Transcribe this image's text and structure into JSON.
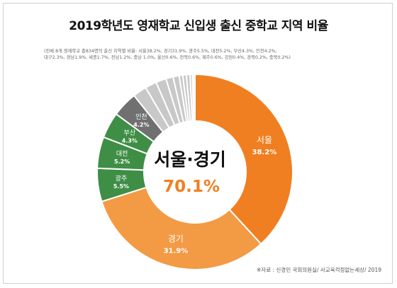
{
  "title": "2019학년도 영재학교 신입생 출신 중학교 지역 비율",
  "note": "(전체 8개 영재학교 총834명의 출신 지역별 비율: 서울38.2%, 경기31.9%, 광주5.5%, 대전5.2%, 부산4.3%, 인천4.2%,\n대구2.3%, 경남1.9%, 세종1.7%, 전남1.2%, 충남 1.0%, 울산0.6%, 전북0.6%, 제주0.6%, 강원0.4%, 경북0.2%, 충북0.2%)",
  "center": {
    "label": "서울·경기",
    "value": "70.1%"
  },
  "source": "※자료 : 신경민 국회의원실/ 사교육걱정없는세상/ 2019",
  "colors": {
    "seoul": "#F07F21",
    "gyeonggi": "#F39A45",
    "green": "#3F8E46",
    "gray": "#707070",
    "lightgray": "#C8C8C8",
    "center_value": "#F07F21"
  },
  "chart_data": {
    "type": "pie",
    "style": "donut",
    "title": "2019학년도 영재학교 신입생 출신 중학교 지역 비율",
    "categories": [
      "서울",
      "경기",
      "광주",
      "대전",
      "부산",
      "인천",
      "대구",
      "경남",
      "세종",
      "전남",
      "충남",
      "울산",
      "전북",
      "제주",
      "강원",
      "경북",
      "충북"
    ],
    "values": [
      38.2,
      31.9,
      5.5,
      5.2,
      4.3,
      4.2,
      2.3,
      1.9,
      1.7,
      1.2,
      1.0,
      0.6,
      0.6,
      0.6,
      0.4,
      0.2,
      0.2
    ],
    "labeled_slices": [
      {
        "name": "서울",
        "value": "38.2%"
      },
      {
        "name": "경기",
        "value": "31.9%"
      },
      {
        "name": "광주",
        "value": "5.5%"
      },
      {
        "name": "대전",
        "value": "5.2%"
      },
      {
        "name": "부산",
        "value": "4.3%"
      },
      {
        "name": "인천",
        "value": "4.2%"
      }
    ]
  }
}
